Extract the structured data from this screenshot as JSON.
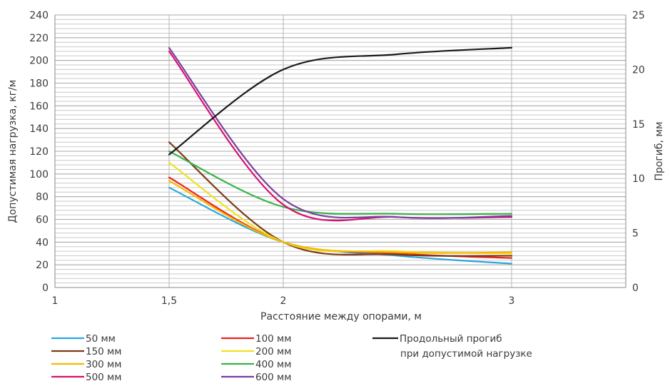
{
  "chart_data": {
    "type": "line",
    "xlabel": "Расстояние между опорами, м",
    "ylabel": "Допустимая нагрузка, кг/м",
    "y2label": "Прогиб, мм",
    "xlim": [
      1,
      3.5
    ],
    "ylim": [
      0,
      240
    ],
    "y2lim": [
      0,
      25
    ],
    "x_ticks": [
      {
        "value": 1,
        "label": "1"
      },
      {
        "value": 1.5,
        "label": "1,5"
      },
      {
        "value": 2,
        "label": "2"
      },
      {
        "value": 3,
        "label": "3"
      }
    ],
    "y_ticks": [
      0,
      20,
      40,
      60,
      80,
      100,
      120,
      140,
      160,
      180,
      200,
      220,
      240
    ],
    "y2_ticks": [
      0,
      5,
      10,
      15,
      20,
      25
    ],
    "y_minor_step": 4,
    "x": [
      1.5,
      2,
      2.5,
      3
    ],
    "series": [
      {
        "name": "50 мм",
        "color": "#2aa7df",
        "axis": "left",
        "values": [
          88,
          40,
          28,
          21
        ]
      },
      {
        "name": "100 мм",
        "color": "#e8241f",
        "axis": "left",
        "values": [
          97,
          40,
          30,
          26
        ]
      },
      {
        "name": "150 мм",
        "color": "#7a3a1a",
        "axis": "left",
        "values": [
          128,
          40,
          29,
          28
        ]
      },
      {
        "name": "200 мм",
        "color": "#f0e120",
        "axis": "left",
        "values": [
          110,
          40,
          32,
          30
        ]
      },
      {
        "name": "300 мм",
        "color": "#f5b800",
        "axis": "left",
        "values": [
          94,
          40,
          31,
          31
        ]
      },
      {
        "name": "400 мм",
        "color": "#3bb34a",
        "axis": "left",
        "values": [
          120,
          71,
          65,
          65
        ]
      },
      {
        "name": "500 мм",
        "color": "#d6136e",
        "axis": "left",
        "values": [
          208,
          73,
          62,
          62
        ]
      },
      {
        "name": "600 мм",
        "color": "#7b3fa0",
        "axis": "left",
        "values": [
          211,
          78,
          62,
          63
        ]
      },
      {
        "name": "Продольный прогиб при допустимой нагрузке",
        "label_lines": [
          "Продольный прогиб",
          "при допустимой нагрузке"
        ],
        "color": "#1a1a1a",
        "axis": "right",
        "values": [
          12.2,
          20.0,
          21.4,
          22.0
        ]
      }
    ]
  }
}
